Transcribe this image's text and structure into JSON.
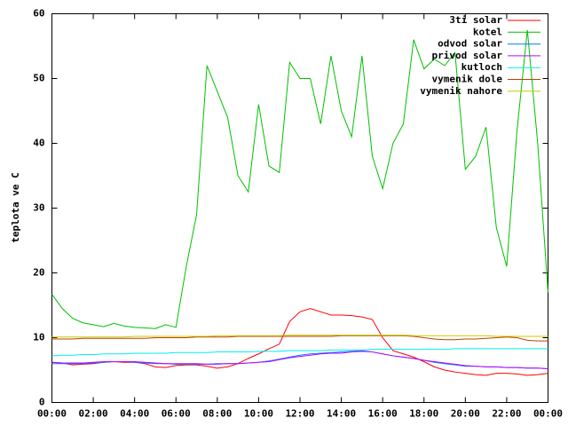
{
  "chart_data": {
    "type": "line",
    "y_label": "teplota ve C",
    "xlim": [
      0,
      24
    ],
    "ylim": [
      0,
      60
    ],
    "xticks": [
      {
        "value": 0,
        "label": "00:00"
      },
      {
        "value": 2,
        "label": "02:00"
      },
      {
        "value": 4,
        "label": "04:00"
      },
      {
        "value": 6,
        "label": "06:00"
      },
      {
        "value": 8,
        "label": "08:00"
      },
      {
        "value": 10,
        "label": "10:00"
      },
      {
        "value": 12,
        "label": "12:00"
      },
      {
        "value": 14,
        "label": "14:00"
      },
      {
        "value": 16,
        "label": "16:00"
      },
      {
        "value": 18,
        "label": "18:00"
      },
      {
        "value": 20,
        "label": "20:00"
      },
      {
        "value": 22,
        "label": "22:00"
      },
      {
        "value": 24,
        "label": "00:00"
      }
    ],
    "yticks": [
      0,
      10,
      20,
      30,
      40,
      50,
      60
    ],
    "legend": "top-right",
    "x": [
      0,
      0.5,
      1,
      1.5,
      2,
      2.5,
      3,
      3.5,
      4,
      4.5,
      5,
      5.5,
      6,
      6.5,
      7,
      7.5,
      8,
      8.5,
      9,
      9.5,
      10,
      10.5,
      11,
      11.5,
      12,
      12.5,
      13,
      13.5,
      14,
      14.5,
      15,
      15.5,
      16,
      16.5,
      17,
      17.5,
      18,
      18.5,
      19,
      19.5,
      20,
      20.5,
      21,
      21.5,
      22,
      22.5,
      23,
      23.5,
      24
    ],
    "series": [
      {
        "name": "3ti solar",
        "color": "#ff0000",
        "values": [
          6.2,
          6.1,
          5.8,
          5.9,
          6,
          6.2,
          6.3,
          6.2,
          6.2,
          6,
          5.5,
          5.4,
          5.7,
          5.8,
          5.8,
          5.6,
          5.3,
          5.5,
          6,
          6.8,
          7.5,
          8.3,
          9,
          12.5,
          14,
          14.5,
          14,
          13.5,
          13.5,
          13.4,
          13.2,
          12.8,
          10,
          8,
          7.5,
          7,
          6.3,
          5.5,
          5,
          4.7,
          4.5,
          4.3,
          4.2,
          4.5,
          4.5,
          4.4,
          4.2,
          4.3,
          4.5
        ]
      },
      {
        "name": "kotel",
        "color": "#00c000",
        "values": [
          16.7,
          14.5,
          13,
          12.3,
          12,
          11.7,
          12.2,
          11.8,
          11.6,
          11.5,
          11.4,
          12,
          11.6,
          21,
          29,
          52,
          48,
          44,
          35,
          32.5,
          46,
          36.5,
          35.5,
          52.5,
          50,
          50,
          43,
          53.5,
          45,
          41,
          53.5,
          38,
          33,
          40,
          43,
          56,
          51.5,
          53,
          52,
          54,
          36,
          38,
          42.5,
          27,
          21,
          42,
          57.5,
          40,
          17
        ]
      },
      {
        "name": "odvod solar",
        "color": "#0080ff",
        "values": [
          6,
          6,
          6,
          6,
          6.1,
          6.2,
          6.3,
          6.3,
          6.2,
          6.1,
          6,
          6,
          5.9,
          5.9,
          5.9,
          5.9,
          6,
          6,
          6,
          6.1,
          6.2,
          6.4,
          6.7,
          7,
          7.3,
          7.5,
          7.6,
          7.7,
          7.8,
          7.9,
          8,
          7.8,
          7.5,
          7.2,
          7,
          6.8,
          6.5,
          6.2,
          6,
          5.8,
          5.6,
          5.6,
          5.5,
          5.5,
          5.4,
          5.4,
          5.3,
          5.3,
          5.2
        ]
      },
      {
        "name": "privod solar",
        "color": "#c000ff",
        "values": [
          6.2,
          6.1,
          6.1,
          6.1,
          6.2,
          6.3,
          6.3,
          6.3,
          6.3,
          6.2,
          6.1,
          6,
          6,
          6,
          6,
          5.9,
          5.9,
          6,
          6,
          6.1,
          6.2,
          6.3,
          6.6,
          6.9,
          7.1,
          7.3,
          7.5,
          7.6,
          7.6,
          7.8,
          7.9,
          7.8,
          7.5,
          7.2,
          7,
          6.8,
          6.5,
          6.3,
          6.1,
          5.9,
          5.7,
          5.6,
          5.5,
          5.5,
          5.4,
          5.4,
          5.3,
          5.3,
          5.2
        ]
      },
      {
        "name": "kutloch",
        "color": "#00eeee",
        "values": [
          7.2,
          7.3,
          7.3,
          7.4,
          7.4,
          7.5,
          7.5,
          7.5,
          7.6,
          7.6,
          7.6,
          7.6,
          7.7,
          7.7,
          7.7,
          7.7,
          7.8,
          7.8,
          7.8,
          7.8,
          7.9,
          7.9,
          7.9,
          8,
          8,
          8,
          8,
          8.1,
          8.1,
          8.1,
          8.1,
          8.2,
          8.2,
          8.2,
          8.2,
          8.2,
          8.2,
          8.2,
          8.2,
          8.3,
          8.3,
          8.3,
          8.3,
          8.3,
          8.3,
          8.3,
          8.3,
          8.3,
          8.3
        ]
      },
      {
        "name": "vymenik dole",
        "color": "#c04000",
        "values": [
          9.8,
          9.8,
          9.8,
          9.9,
          9.9,
          9.9,
          9.9,
          9.9,
          9.9,
          9.9,
          10,
          10,
          10,
          10,
          10.1,
          10.1,
          10.1,
          10.1,
          10.2,
          10.2,
          10.2,
          10.2,
          10.2,
          10.2,
          10.2,
          10.2,
          10.2,
          10.2,
          10.3,
          10.3,
          10.3,
          10.3,
          10.3,
          10.3,
          10.3,
          10.2,
          10,
          9.8,
          9.7,
          9.7,
          9.8,
          9.8,
          9.9,
          10,
          10.1,
          10,
          9.6,
          9.5,
          9.5
        ]
      },
      {
        "name": "vymenik nahore",
        "color": "#c8c800",
        "values": [
          10.1,
          10.1,
          10.1,
          10.1,
          10.1,
          10.1,
          10.1,
          10.1,
          10.2,
          10.2,
          10.2,
          10.2,
          10.2,
          10.2,
          10.2,
          10.2,
          10.3,
          10.3,
          10.3,
          10.3,
          10.3,
          10.3,
          10.3,
          10.4,
          10.4,
          10.4,
          10.4,
          10.4,
          10.4,
          10.4,
          10.4,
          10.4,
          10.4,
          10.4,
          10.4,
          10.3,
          10.3,
          10.3,
          10.3,
          10.3,
          10.3,
          10.3,
          10.3,
          10.2,
          10.2,
          10.2,
          10.2,
          10.2,
          10.2
        ]
      }
    ]
  }
}
